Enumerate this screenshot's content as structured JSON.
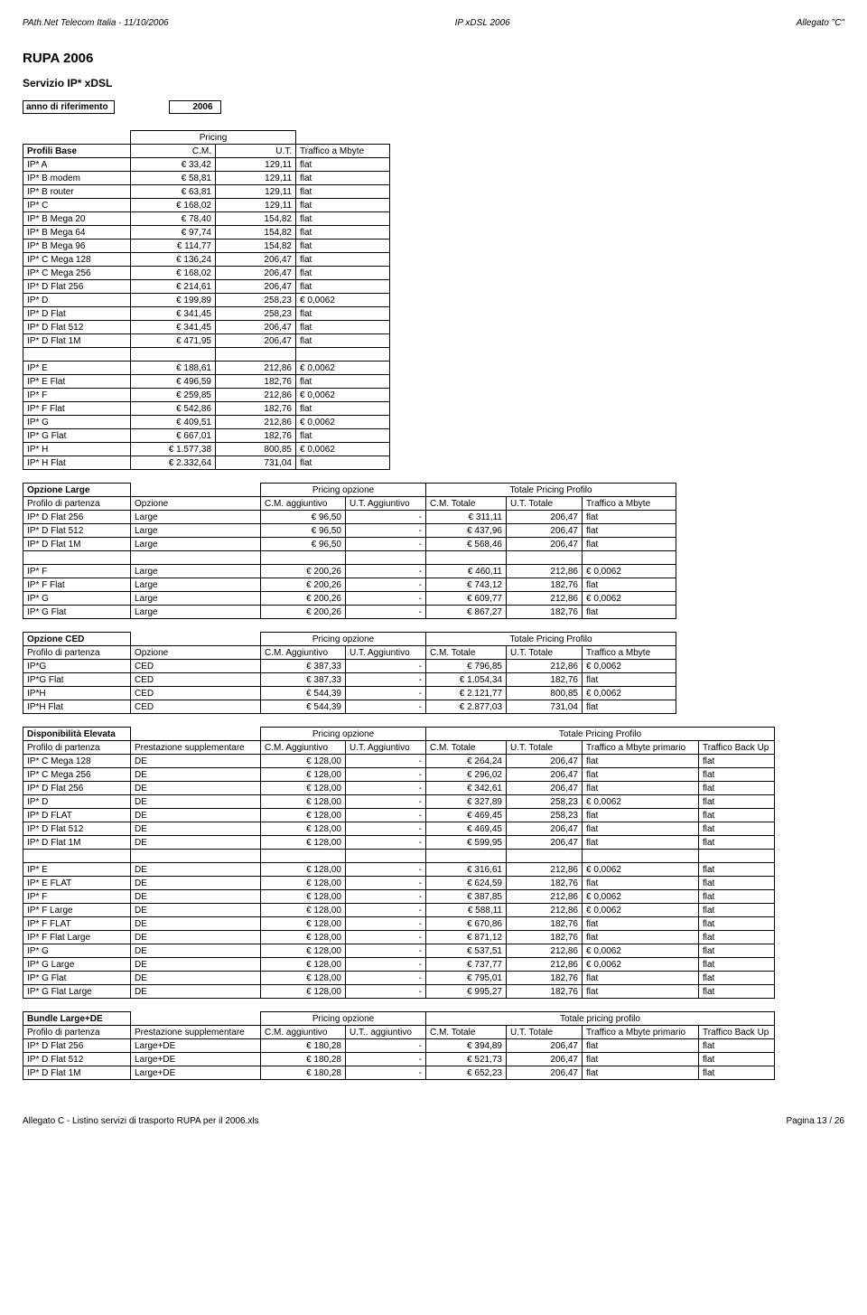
{
  "header": {
    "left": "PAth.Net    Telecom Italia - 11/10/2006",
    "center": "IP xDSL 2006",
    "right": "Allegato \"C\""
  },
  "title": "RUPA 2006",
  "subtitle": "Servizio IP* xDSL",
  "refYear": {
    "label": "anno di riferimento",
    "value": "2006"
  },
  "pricingLabel": "Pricing",
  "profiliBase": {
    "header": [
      "Profili Base",
      "C.M.",
      "U.T.",
      "Traffico a Mbyte"
    ],
    "rows": [
      [
        "IP* A",
        "€        33,42",
        "129,11",
        "flat"
      ],
      [
        "IP* B modem",
        "€        58,81",
        "129,11",
        "flat"
      ],
      [
        "IP* B router",
        "€        63,81",
        "129,11",
        "flat"
      ],
      [
        "IP* C",
        "€      168,02",
        "129,11",
        "flat"
      ],
      [
        "IP* B Mega 20",
        "€        78,40",
        "154,82",
        "flat"
      ],
      [
        "IP* B Mega 64",
        "€        97,74",
        "154,82",
        "flat"
      ],
      [
        "IP* B Mega 96",
        "€      114,77",
        "154,82",
        "flat"
      ],
      [
        "IP* C Mega 128",
        "€      136,24",
        "206,47",
        "flat"
      ],
      [
        "IP* C Mega 256",
        "€      168,02",
        "206,47",
        "flat"
      ],
      [
        "IP* D Flat 256",
        "€      214,61",
        "206,47",
        "flat"
      ],
      [
        "IP* D",
        "€      199,89",
        "258,23",
        "€            0,0062"
      ],
      [
        "IP* D Flat",
        "€      341,45",
        "258,23",
        "flat"
      ],
      [
        "IP* D Flat 512",
        "€      341,45",
        "206,47",
        "flat"
      ],
      [
        "IP* D Flat 1M",
        "€      471,95",
        "206,47",
        "flat"
      ]
    ],
    "rows2": [
      [
        "IP* E",
        "€      188,61",
        "212,86",
        "€            0,0062"
      ],
      [
        "IP* E Flat",
        "€      496,59",
        "182,76",
        "flat"
      ],
      [
        "IP* F",
        "€      259,85",
        "212,86",
        "€            0,0062"
      ],
      [
        "IP* F Flat",
        "€      542,86",
        "182,76",
        "flat"
      ],
      [
        "IP* G",
        "€      409,51",
        "212,86",
        "€            0,0062"
      ],
      [
        "IP* G Flat",
        "€      667,01",
        "182,76",
        "flat"
      ],
      [
        "IP* H",
        "€   1.577,38",
        "800,85",
        "€            0,0062"
      ],
      [
        "IP* H Flat",
        "€   2.332,64",
        "731,04",
        "flat"
      ]
    ]
  },
  "opzioneLarge": {
    "title": "Opzione Large",
    "pricingOpzione": "Pricing opzione",
    "totale": "Totale Pricing Profilo",
    "header": [
      "Profilo di partenza",
      "Opzione",
      "C.M. aggiuntivo",
      "U.T. Aggiuntivo",
      "C.M. Totale",
      "U.T. Totale",
      "Traffico a Mbyte"
    ],
    "rows": [
      [
        "IP* D Flat 256",
        "Large",
        "€             96,50",
        "-",
        "€    311,11",
        "206,47",
        "flat"
      ],
      [
        "IP* D Flat 512",
        "Large",
        "€             96,50",
        "-",
        "€    437,96",
        "206,47",
        "flat"
      ],
      [
        "IP* D Flat 1M",
        "Large",
        "€             96,50",
        "-",
        "€    568,46",
        "206,47",
        "flat"
      ]
    ],
    "rows2": [
      [
        "IP* F",
        "Large",
        "€           200,26",
        "-",
        "€    460,11",
        "212,86",
        "€               0,0062"
      ],
      [
        "IP* F Flat",
        "Large",
        "€           200,26",
        "-",
        "€    743,12",
        "182,76",
        "flat"
      ],
      [
        "IP* G",
        "Large",
        "€           200,26",
        "-",
        "€    609,77",
        "212,86",
        "€               0,0062"
      ],
      [
        "IP* G Flat",
        "Large",
        "€           200,26",
        "-",
        "€    867,27",
        "182,76",
        "flat"
      ]
    ]
  },
  "opzioneCED": {
    "title": "Opzione CED",
    "pricingOpzione": "Pricing opzione",
    "totale": "Totale Pricing Profilo",
    "header": [
      "Profilo di partenza",
      "Opzione",
      "C.M. Aggiuntivo",
      "U.T. Aggiuntivo",
      "C.M. Totale",
      "U.T. Totale",
      "Traffico a Mbyte"
    ],
    "rows": [
      [
        "IP*G",
        "CED",
        "€           387,33",
        "-",
        "€    796,85",
        "212,86",
        "€               0,0062"
      ],
      [
        "IP*G Flat",
        "CED",
        "€           387,33",
        "-",
        "€ 1.054,34",
        "182,76",
        "flat"
      ],
      [
        "IP*H",
        "CED",
        "€           544,39",
        "-",
        "€ 2.121,77",
        "800,85",
        "€               0,0062"
      ],
      [
        "IP*H Flat",
        "CED",
        "€           544,39",
        "-",
        "€ 2.877,03",
        "731,04",
        "flat"
      ]
    ]
  },
  "dispElevata": {
    "title": "Disponibilità Elevata",
    "pricingOpzione": "Pricing opzione",
    "totale": "Totale Pricing Profilo",
    "header": [
      "Profilo di partenza",
      "Prestazione supplementare",
      "C.M. Aggiuntivo",
      "U.T. Aggiuntivo",
      "C.M. Totale",
      "U.T. Totale",
      "Traffico a Mbyte primario",
      "Traffico Back Up"
    ],
    "rows": [
      [
        "IP* C Mega 128",
        "DE",
        "€           128,00",
        "-",
        "€    264,24",
        "206,47",
        "flat",
        "flat"
      ],
      [
        "IP* C Mega 256",
        "DE",
        "€           128,00",
        "-",
        "€    296,02",
        "206,47",
        "flat",
        "flat"
      ],
      [
        "IP* D Flat 256",
        "DE",
        "€           128,00",
        "-",
        "€    342,61",
        "206,47",
        "flat",
        "flat"
      ],
      [
        "IP* D",
        "DE",
        "€           128,00",
        "-",
        "€    327,89",
        "258,23",
        "€             0,0062",
        "flat"
      ],
      [
        "IP* D FLAT",
        "DE",
        "€           128,00",
        "-",
        "€    469,45",
        "258,23",
        "flat",
        "flat"
      ],
      [
        "IP* D Flat 512",
        "DE",
        "€           128,00",
        "-",
        "€    469,45",
        "206,47",
        "flat",
        "flat"
      ],
      [
        "IP* D Flat 1M",
        "DE",
        "€           128,00",
        "-",
        "€    599,95",
        "206,47",
        "flat",
        "flat"
      ]
    ],
    "rows2": [
      [
        "IP* E",
        "DE",
        "€           128,00",
        "-",
        "€    316,61",
        "212,86",
        "€             0,0062",
        "flat"
      ],
      [
        "IP* E FLAT",
        "DE",
        "€           128,00",
        "-",
        "€    624,59",
        "182,76",
        "flat",
        "flat"
      ],
      [
        "IP* F",
        "DE",
        "€           128,00",
        "-",
        "€    387,85",
        "212,86",
        "€             0,0062",
        "flat"
      ],
      [
        "IP* F Large",
        "DE",
        "€           128,00",
        "-",
        "€    588,11",
        "212,86",
        "€             0,0062",
        "flat"
      ],
      [
        "IP* F FLAT",
        "DE",
        "€           128,00",
        "-",
        "€    670,86",
        "182,76",
        "flat",
        "flat"
      ],
      [
        "IP* F Flat Large",
        "DE",
        "€           128,00",
        "-",
        "€    871,12",
        "182,76",
        "flat",
        "flat"
      ],
      [
        "IP* G",
        "DE",
        "€           128,00",
        "-",
        "€    537,51",
        "212,86",
        "€             0,0062",
        "flat"
      ],
      [
        "IP* G Large",
        "DE",
        "€           128,00",
        "-",
        "€    737,77",
        "212,86",
        "€             0,0062",
        "flat"
      ],
      [
        "IP* G Flat",
        "DE",
        "€           128,00",
        "-",
        "€    795,01",
        "182,76",
        "flat",
        "flat"
      ],
      [
        "IP* G Flat Large",
        "DE",
        "€           128,00",
        "-",
        "€    995,27",
        "182,76",
        "flat",
        "flat"
      ]
    ]
  },
  "bundle": {
    "title": "Bundle Large+DE",
    "pricingOpzione": "Pricing opzione",
    "totale": "Totale pricing profilo",
    "header": [
      "Profilo di partenza",
      "Prestazione supplementare",
      "C.M. aggiuntivo",
      "U.T.. aggiuntivo",
      "C.M. Totale",
      "U.T. Totale",
      "Traffico a Mbyte primario",
      "Traffico Back Up"
    ],
    "rows": [
      [
        "IP* D Flat 256",
        "Large+DE",
        "€           180,28",
        "-",
        "€    394,89",
        "206,47",
        "flat",
        "flat"
      ],
      [
        "IP* D Flat 512",
        "Large+DE",
        "€           180,28",
        "-",
        "€    521,73",
        "206,47",
        "flat",
        "flat"
      ],
      [
        "IP* D Flat 1M",
        "Large+DE",
        "€           180,28",
        "-",
        "€    652,23",
        "206,47",
        "flat",
        "flat"
      ]
    ]
  },
  "footer": {
    "left": "Allegato C - Listino servizi di trasporto RUPA per il 2006.xls",
    "right": "Pagina 13 / 26"
  }
}
